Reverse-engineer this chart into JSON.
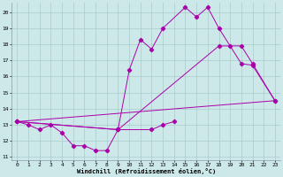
{
  "xlabel": "Windchill (Refroidissement éolien,°C)",
  "background_color": "#cce8e8",
  "grid_color": "#aacccc",
  "line_color": "#aa00aa",
  "xlim": [
    -0.5,
    23.5
  ],
  "ylim": [
    10.8,
    20.6
  ],
  "xticks": [
    0,
    1,
    2,
    3,
    4,
    5,
    6,
    7,
    8,
    9,
    10,
    11,
    12,
    13,
    14,
    15,
    16,
    17,
    18,
    19,
    20,
    21,
    22,
    23
  ],
  "yticks": [
    11,
    12,
    13,
    14,
    15,
    16,
    17,
    18,
    19,
    20
  ],
  "line1_x": [
    0,
    1,
    2,
    3,
    4,
    5,
    6,
    7,
    8,
    9,
    12,
    13,
    14
  ],
  "line1_y": [
    13.2,
    13.0,
    12.7,
    13.0,
    12.5,
    11.7,
    11.7,
    11.4,
    11.4,
    12.7,
    12.7,
    13.0,
    13.2
  ],
  "line2_x": [
    0,
    9,
    10,
    11,
    12,
    13,
    15,
    16,
    17,
    18,
    19,
    20,
    21,
    23
  ],
  "line2_y": [
    13.2,
    12.7,
    16.4,
    18.3,
    17.7,
    19.0,
    20.3,
    19.7,
    20.3,
    19.0,
    17.9,
    16.8,
    16.7,
    14.5
  ],
  "line3_x": [
    0,
    9,
    18,
    20,
    21,
    23
  ],
  "line3_y": [
    13.2,
    12.7,
    17.9,
    17.9,
    16.8,
    14.5
  ],
  "line4_x": [
    0,
    23
  ],
  "line4_y": [
    13.2,
    14.5
  ]
}
